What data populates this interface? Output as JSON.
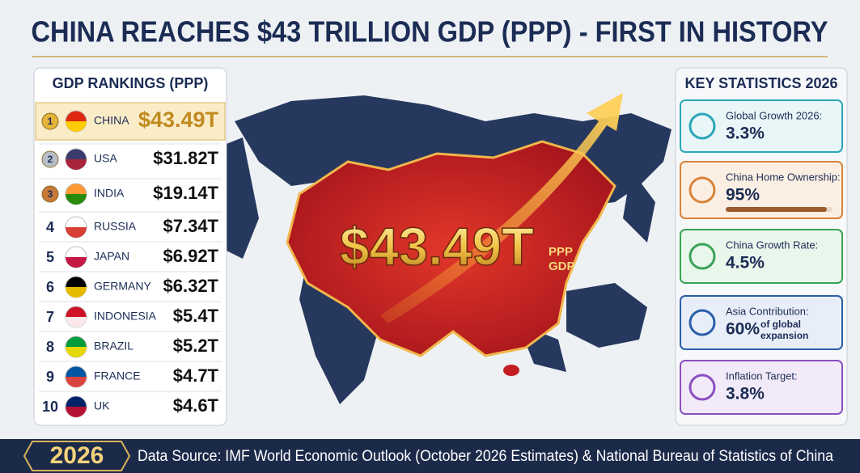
{
  "header": {
    "title": "CHINA REACHES $43 TRILLION GDP (PPP) - FIRST IN HISTORY"
  },
  "rankings": {
    "title": "GDP RANKINGS (PPP)",
    "rows": [
      {
        "rank": "1",
        "country": "CHINA",
        "value": "$43.49T"
      },
      {
        "rank": "2",
        "country": "USA",
        "value": "$31.82T"
      },
      {
        "rank": "3",
        "country": "INDIA",
        "value": "$19.14T"
      },
      {
        "rank": "4",
        "country": "RUSSIA",
        "value": "$7.34T"
      },
      {
        "rank": "5",
        "country": "JAPAN",
        "value": "$6.92T"
      },
      {
        "rank": "6",
        "country": "GERMANY",
        "value": "$6.32T"
      },
      {
        "rank": "7",
        "country": "INDONESIA",
        "value": "$5.4T"
      },
      {
        "rank": "8",
        "country": "BRAZIL",
        "value": "$5.2T"
      },
      {
        "rank": "9",
        "country": "FRANCE",
        "value": "$4.7T"
      },
      {
        "rank": "10",
        "country": "UK",
        "value": "$4.6T"
      }
    ]
  },
  "map": {
    "value": "$43.49T",
    "unit_top": "PPP",
    "unit_bottom": "GDP"
  },
  "stats": {
    "title": "KEY STATISTICS 2026",
    "items": [
      {
        "label": "Global Growth 2026:",
        "value": "3.3%"
      },
      {
        "label": "China Home Ownership:",
        "value": "95%"
      },
      {
        "label": "China Growth Rate:",
        "value": "4.5%"
      },
      {
        "label": "Asia Contribution:",
        "value": "60%",
        "note": [
          "of global",
          "expansion"
        ]
      },
      {
        "label": "Inflation Target:",
        "value": "3.8%"
      }
    ]
  },
  "footer": {
    "year": "2026",
    "source": "Data Source: IMF World Economic Outlook (October 2026 Estimates) & National Bureau of Statistics of China"
  }
}
